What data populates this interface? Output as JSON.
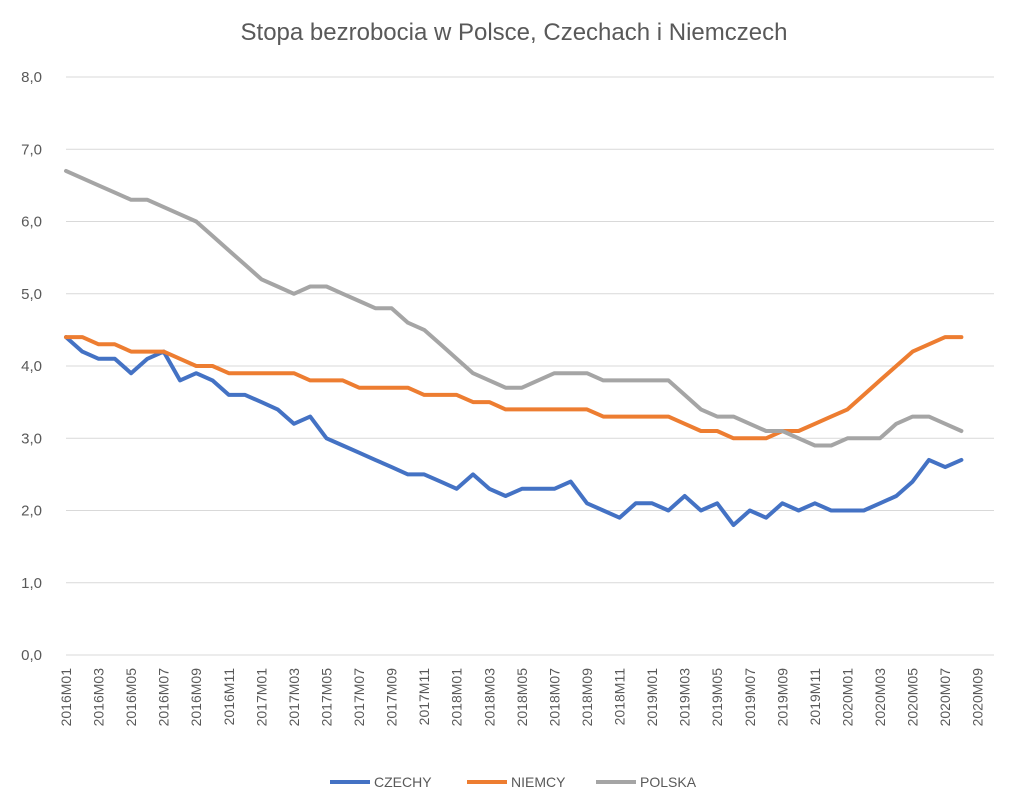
{
  "chart_data": {
    "type": "line",
    "title": "Stopa bezrobocia w Polsce, Czechach i Niemczech",
    "xlabel": "",
    "ylabel": "",
    "ylim": [
      0,
      8
    ],
    "yticks": [
      "0,0",
      "1,0",
      "2,0",
      "3,0",
      "4,0",
      "5,0",
      "6,0",
      "7,0",
      "8,0"
    ],
    "grid": true,
    "legend_position": "bottom",
    "x_tick_labels": [
      "2016M01",
      "2016M03",
      "2016M05",
      "2016M07",
      "2016M09",
      "2016M11",
      "2017M01",
      "2017M03",
      "2017M05",
      "2017M07",
      "2017M09",
      "2017M11",
      "2018M01",
      "2018M03",
      "2018M05",
      "2018M07",
      "2018M09",
      "2018M11",
      "2019M01",
      "2019M03",
      "2019M05",
      "2019M07",
      "2019M09",
      "2019M11",
      "2020M01",
      "2020M03",
      "2020M05",
      "2020M07",
      "2020M09"
    ],
    "x": [
      "2016M01",
      "2016M02",
      "2016M03",
      "2016M04",
      "2016M05",
      "2016M06",
      "2016M07",
      "2016M08",
      "2016M09",
      "2016M10",
      "2016M11",
      "2016M12",
      "2017M01",
      "2017M02",
      "2017M03",
      "2017M04",
      "2017M05",
      "2017M06",
      "2017M07",
      "2017M08",
      "2017M09",
      "2017M10",
      "2017M11",
      "2017M12",
      "2018M01",
      "2018M02",
      "2018M03",
      "2018M04",
      "2018M05",
      "2018M06",
      "2018M07",
      "2018M08",
      "2018M09",
      "2018M10",
      "2018M11",
      "2018M12",
      "2019M01",
      "2019M02",
      "2019M03",
      "2019M04",
      "2019M05",
      "2019M06",
      "2019M07",
      "2019M08",
      "2019M09",
      "2019M10",
      "2019M11",
      "2019M12",
      "2020M01",
      "2020M02",
      "2020M03",
      "2020M04",
      "2020M05",
      "2020M06",
      "2020M07",
      "2020M08"
    ],
    "series": [
      {
        "name": "CZECHY",
        "color": "#4472c4",
        "values": [
          4.4,
          4.2,
          4.1,
          4.1,
          3.9,
          4.1,
          4.2,
          3.8,
          3.9,
          3.8,
          3.6,
          3.6,
          3.5,
          3.4,
          3.2,
          3.3,
          3.0,
          2.9,
          2.8,
          2.7,
          2.6,
          2.5,
          2.5,
          2.4,
          2.3,
          2.5,
          2.3,
          2.2,
          2.3,
          2.3,
          2.3,
          2.4,
          2.1,
          2.0,
          1.9,
          2.1,
          2.1,
          2.0,
          2.2,
          2.0,
          2.1,
          1.8,
          2.0,
          1.9,
          2.1,
          2.0,
          2.1,
          2.0,
          2.0,
          2.0,
          2.1,
          2.2,
          2.4,
          2.7,
          2.6,
          2.7
        ]
      },
      {
        "name": "NIEMCY",
        "color": "#ed7d31",
        "values": [
          4.4,
          4.4,
          4.3,
          4.3,
          4.2,
          4.2,
          4.2,
          4.1,
          4.0,
          4.0,
          3.9,
          3.9,
          3.9,
          3.9,
          3.9,
          3.8,
          3.8,
          3.8,
          3.7,
          3.7,
          3.7,
          3.7,
          3.6,
          3.6,
          3.6,
          3.5,
          3.5,
          3.4,
          3.4,
          3.4,
          3.4,
          3.4,
          3.4,
          3.3,
          3.3,
          3.3,
          3.3,
          3.3,
          3.2,
          3.1,
          3.1,
          3.0,
          3.0,
          3.0,
          3.1,
          3.1,
          3.2,
          3.3,
          3.4,
          3.6,
          3.8,
          4.0,
          4.2,
          4.3,
          4.4,
          4.4
        ]
      },
      {
        "name": "POLSKA",
        "color": "#a5a5a5",
        "values": [
          6.7,
          6.6,
          6.5,
          6.4,
          6.3,
          6.3,
          6.2,
          6.1,
          6.0,
          5.8,
          5.6,
          5.4,
          5.2,
          5.1,
          5.0,
          5.1,
          5.1,
          5.0,
          4.9,
          4.8,
          4.8,
          4.6,
          4.5,
          4.3,
          4.1,
          3.9,
          3.8,
          3.7,
          3.7,
          3.8,
          3.9,
          3.9,
          3.9,
          3.8,
          3.8,
          3.8,
          3.8,
          3.8,
          3.6,
          3.4,
          3.3,
          3.3,
          3.2,
          3.1,
          3.1,
          3.0,
          2.9,
          2.9,
          3.0,
          3.0,
          3.0,
          3.2,
          3.3,
          3.3,
          3.2,
          3.1
        ]
      }
    ]
  }
}
